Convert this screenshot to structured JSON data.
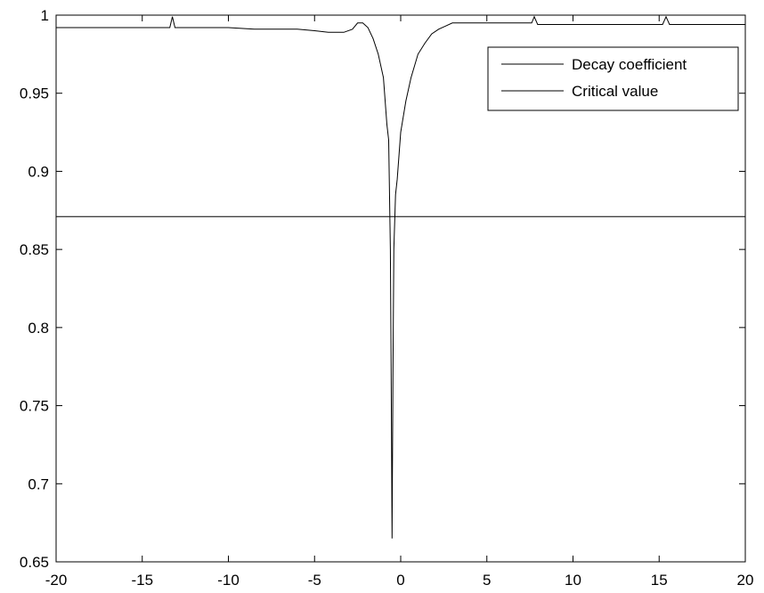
{
  "chart_data": {
    "type": "line",
    "title": "",
    "xlabel": "",
    "ylabel": "",
    "xlim": [
      -20,
      20
    ],
    "ylim": [
      0.65,
      1
    ],
    "grid": false,
    "legend_position": "top-right",
    "x_ticks": [
      -20,
      -15,
      -10,
      -5,
      0,
      5,
      10,
      15,
      20
    ],
    "x_tick_labels": [
      "-20",
      "-15",
      "-10",
      "-5",
      "0",
      "5",
      "10",
      "15",
      "20"
    ],
    "y_ticks": [
      0.65,
      0.7,
      0.75,
      0.8,
      0.85,
      0.9,
      0.95,
      1
    ],
    "y_tick_labels": [
      "0.65",
      "0.7",
      "0.75",
      "0.8",
      "0.85",
      "0.9",
      "0.95",
      "1"
    ],
    "series": [
      {
        "name": "Decay coefficient",
        "color": "#000000",
        "x": [
          -20,
          -13.4,
          -13.25,
          -13.1,
          -10,
          -8.5,
          -6,
          -5,
          -4.2,
          -3.3,
          -2.8,
          -2.5,
          -2.2,
          -1.9,
          -1.6,
          -1.3,
          -1.0,
          -0.8,
          -0.7,
          -0.6,
          -0.55,
          -0.5,
          -0.45,
          -0.4,
          -0.3,
          -0.2,
          0.0,
          0.3,
          0.6,
          1.0,
          1.4,
          1.8,
          2.2,
          2.6,
          3.0,
          4.0,
          6.0,
          7.6,
          7.75,
          7.95,
          10,
          15.2,
          15.4,
          15.6,
          20
        ],
        "y": [
          0.992,
          0.992,
          0.999,
          0.992,
          0.992,
          0.991,
          0.991,
          0.99,
          0.989,
          0.989,
          0.991,
          0.995,
          0.995,
          0.992,
          0.985,
          0.975,
          0.96,
          0.93,
          0.92,
          0.85,
          0.76,
          0.665,
          0.77,
          0.85,
          0.885,
          0.895,
          0.925,
          0.945,
          0.96,
          0.975,
          0.982,
          0.988,
          0.991,
          0.993,
          0.995,
          0.995,
          0.995,
          0.995,
          0.999,
          0.994,
          0.994,
          0.994,
          0.999,
          0.994,
          0.994
        ]
      },
      {
        "name": "Critical value",
        "color": "#000000",
        "x": [
          -20,
          20
        ],
        "y": [
          0.871,
          0.871
        ]
      }
    ]
  }
}
